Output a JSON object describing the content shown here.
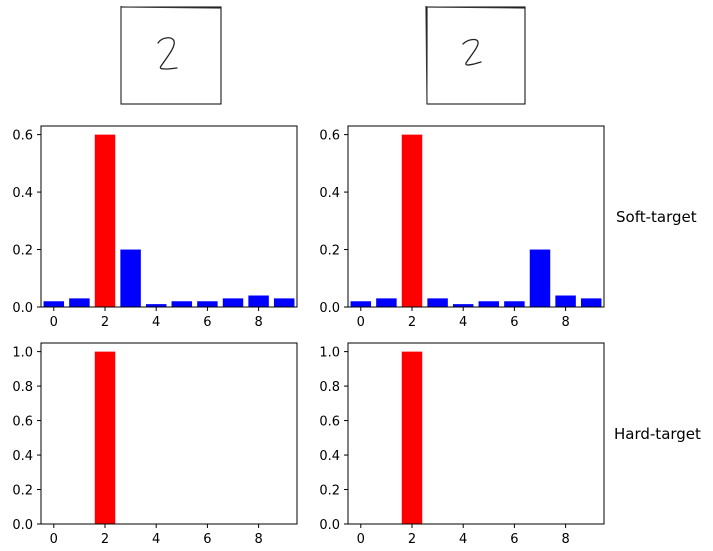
{
  "figure": {
    "row_labels": [
      "Soft-target",
      "Hard-target"
    ],
    "digit_images": [
      {
        "name": "digit-2-left",
        "label": "handwritten digit 2"
      },
      {
        "name": "digit-2-right",
        "label": "handwritten digit 2 (slanted)"
      }
    ]
  },
  "chart_data": [
    {
      "type": "bar",
      "name": "soft-target-left",
      "categories": [
        0,
        1,
        2,
        3,
        4,
        5,
        6,
        7,
        8,
        9
      ],
      "values": [
        0.02,
        0.03,
        0.6,
        0.2,
        0.01,
        0.02,
        0.02,
        0.03,
        0.04,
        0.03
      ],
      "bar_colors": [
        "#0000ff",
        "#0000ff",
        "#ff0000",
        "#0000ff",
        "#0000ff",
        "#0000ff",
        "#0000ff",
        "#0000ff",
        "#0000ff",
        "#0000ff"
      ],
      "xticks": [
        0,
        2,
        4,
        6,
        8
      ],
      "yticks": [
        0.0,
        0.2,
        0.4,
        0.6
      ],
      "ytick_labels": [
        "0.0",
        "0.2",
        "0.4",
        "0.6"
      ],
      "ylim": [
        0,
        0.63
      ],
      "xlim": [
        -0.5,
        9.5
      ]
    },
    {
      "type": "bar",
      "name": "soft-target-right",
      "categories": [
        0,
        1,
        2,
        3,
        4,
        5,
        6,
        7,
        8,
        9
      ],
      "values": [
        0.02,
        0.03,
        0.6,
        0.03,
        0.01,
        0.02,
        0.02,
        0.2,
        0.04,
        0.03
      ],
      "bar_colors": [
        "#0000ff",
        "#0000ff",
        "#ff0000",
        "#0000ff",
        "#0000ff",
        "#0000ff",
        "#0000ff",
        "#0000ff",
        "#0000ff",
        "#0000ff"
      ],
      "xticks": [
        0,
        2,
        4,
        6,
        8
      ],
      "yticks": [
        0.0,
        0.2,
        0.4,
        0.6
      ],
      "ytick_labels": [
        "0.0",
        "0.2",
        "0.4",
        "0.6"
      ],
      "ylim": [
        0,
        0.63
      ],
      "xlim": [
        -0.5,
        9.5
      ]
    },
    {
      "type": "bar",
      "name": "hard-target-left",
      "categories": [
        0,
        1,
        2,
        3,
        4,
        5,
        6,
        7,
        8,
        9
      ],
      "values": [
        0,
        0,
        1.0,
        0,
        0,
        0,
        0,
        0,
        0,
        0
      ],
      "bar_colors": [
        "#0000ff",
        "#0000ff",
        "#ff0000",
        "#0000ff",
        "#0000ff",
        "#0000ff",
        "#0000ff",
        "#0000ff",
        "#0000ff",
        "#0000ff"
      ],
      "xticks": [
        0,
        2,
        4,
        6,
        8
      ],
      "yticks": [
        0.0,
        0.2,
        0.4,
        0.6,
        0.8,
        1.0
      ],
      "ytick_labels": [
        "0.0",
        "0.2",
        "0.4",
        "0.6",
        "0.8",
        "1.0"
      ],
      "ylim": [
        0,
        1.05
      ],
      "xlim": [
        -0.5,
        9.5
      ]
    },
    {
      "type": "bar",
      "name": "hard-target-right",
      "categories": [
        0,
        1,
        2,
        3,
        4,
        5,
        6,
        7,
        8,
        9
      ],
      "values": [
        0,
        0,
        1.0,
        0,
        0,
        0,
        0,
        0,
        0,
        0
      ],
      "bar_colors": [
        "#0000ff",
        "#0000ff",
        "#ff0000",
        "#0000ff",
        "#0000ff",
        "#0000ff",
        "#0000ff",
        "#0000ff",
        "#0000ff",
        "#0000ff"
      ],
      "xticks": [
        0,
        2,
        4,
        6,
        8
      ],
      "yticks": [
        0.0,
        0.2,
        0.4,
        0.6,
        0.8,
        1.0
      ],
      "ytick_labels": [
        "0.0",
        "0.2",
        "0.4",
        "0.6",
        "0.8",
        "1.0"
      ],
      "ylim": [
        0,
        1.05
      ],
      "xlim": [
        -0.5,
        9.5
      ]
    }
  ]
}
